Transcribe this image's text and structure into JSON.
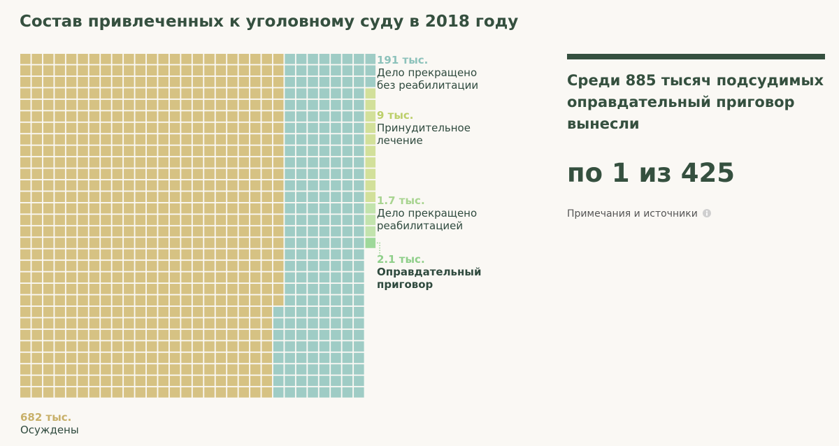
{
  "header": {
    "title": "Состав привлеченных к уголовному суду в 2018 году"
  },
  "chart_data": {
    "type": "waffle",
    "title": "Состав привлеченных к уголовному суду в 2018 году",
    "unit": "тыс.",
    "segments": [
      {
        "key": "convicted",
        "value_label": "682 тыс.",
        "label": "Осуждены",
        "value": 682,
        "color": "#d6c283",
        "label_color": "#c8b06a"
      },
      {
        "key": "dismissed_no_rehab",
        "value_label": "191 тыс.",
        "label": "Дело прекращено без реабилитации",
        "value": 191,
        "color": "#9fccc5",
        "label_color": "#8dc2bb"
      },
      {
        "key": "compulsory_treatment",
        "value_label": "9 тыс.",
        "label": "Принудительное лечение",
        "value": 9,
        "color": "#d2e09a",
        "label_color": "#bccf6a"
      },
      {
        "key": "dismissed_rehab",
        "value_label": "1.7 тыс.",
        "label": "Дело прекращено реабилитацией",
        "value": 1.7,
        "color": "#c2e3ad",
        "label_color": "#a8d490"
      },
      {
        "key": "acquittal",
        "value_label": "2.1 тыс.",
        "label": "Оправдательный приговор",
        "value": 2.1,
        "color": "#9ed89a",
        "label_color": "#8fcf8a"
      }
    ]
  },
  "labels": {
    "convicted": {
      "value": "682 тыс.",
      "text": "Осуждены"
    },
    "dismissed_no_rehab": {
      "value": "191 тыс.",
      "text1": "Дело прекращено",
      "text2": "без реабилитации"
    },
    "compulsory_treatment": {
      "value": "9 тыс.",
      "text1": "Принудительное",
      "text2": "лечение"
    },
    "dismissed_rehab": {
      "value": "1.7 тыс.",
      "text1": "Дело прекращено",
      "text2": "реабилитацией"
    },
    "acquittal": {
      "value": "2.1 тыс.",
      "text1": "Оправдательный",
      "text2": "приговор"
    }
  },
  "panel": {
    "headline": "Среди 885 тысяч подсудимых оправдательный приговор вынесли",
    "big": "по 1 из 425",
    "notes": "Примечания и источники",
    "notes_icon": "info-icon"
  }
}
